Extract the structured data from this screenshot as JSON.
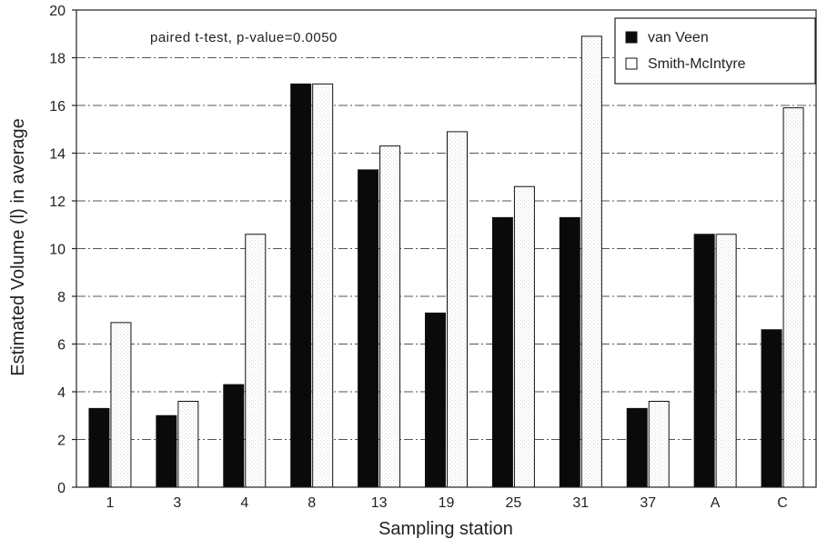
{
  "chart_data": {
    "type": "bar",
    "title": "",
    "annotation": "paired t-test, p-value=0.0050",
    "xlabel": "Sampling station",
    "ylabel": "Estimated Volume (l) in average",
    "categories": [
      "1",
      "3",
      "4",
      "8",
      "13",
      "19",
      "25",
      "31",
      "37",
      "A",
      "C"
    ],
    "series": [
      {
        "name": "van Veen",
        "color": "#0a0a0a",
        "values": [
          3.3,
          3.0,
          4.3,
          16.9,
          13.3,
          7.3,
          11.3,
          11.3,
          3.3,
          10.6,
          6.6
        ]
      },
      {
        "name": "Smith-McIntyre",
        "color": "#ffffff",
        "values": [
          6.9,
          3.6,
          10.6,
          16.9,
          14.3,
          14.9,
          12.6,
          18.9,
          3.6,
          10.6,
          15.9
        ]
      }
    ],
    "ylim": [
      0,
      20
    ],
    "yticks": [
      0,
      2,
      4,
      6,
      8,
      10,
      12,
      14,
      16,
      18,
      20
    ],
    "grid": true,
    "legend_position": "top-right"
  }
}
